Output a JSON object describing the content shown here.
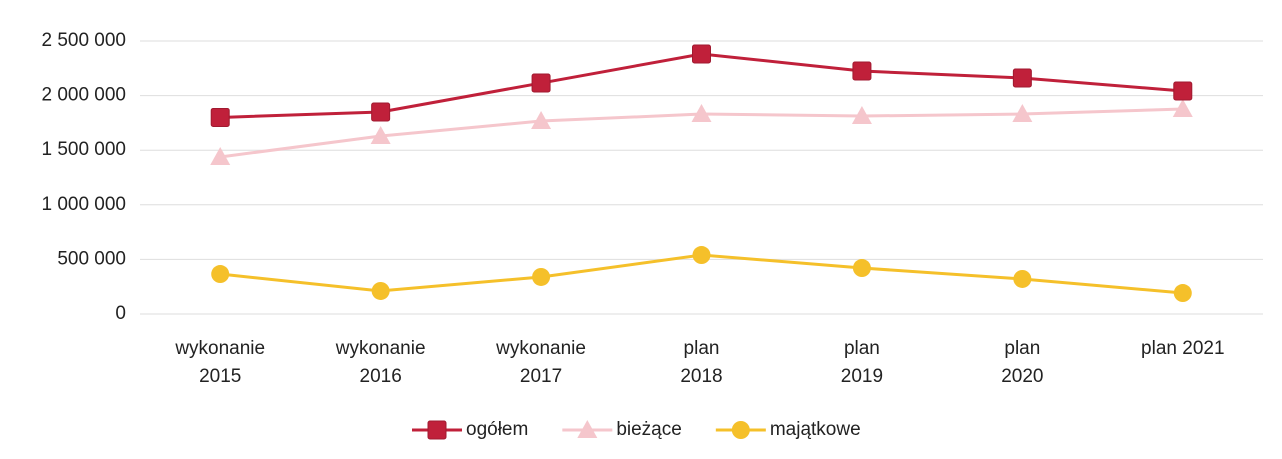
{
  "chart_data": {
    "type": "line",
    "categories": [
      [
        "wykonanie",
        "2015"
      ],
      [
        "wykonanie",
        "2016"
      ],
      [
        "wykonanie",
        "2017"
      ],
      [
        "plan",
        "2018"
      ],
      [
        "plan",
        "2019"
      ],
      [
        "plan",
        "2020"
      ],
      [
        "plan 2021"
      ]
    ],
    "series": [
      {
        "name": "ogółem",
        "color": "#c0203a",
        "marker": "square",
        "values": [
          1800000,
          1850000,
          2115000,
          2381000,
          2225000,
          2161000,
          2042000
        ]
      },
      {
        "name": "bieżące",
        "color": "#f5c6cc",
        "marker": "triangle",
        "values": [
          1438000,
          1630000,
          1767000,
          1831000,
          1813000,
          1831000,
          1877000
        ]
      },
      {
        "name": "majątkowe",
        "color": "#f5c02a",
        "marker": "circle",
        "values": [
          366000,
          211000,
          339000,
          540000,
          421000,
          321000,
          192000
        ]
      }
    ],
    "ylim": [
      0,
      2500000
    ],
    "yticks": [
      0,
      {
        "value": 500000,
        "label": "500 000"
      },
      {
        "value": 1000000,
        "label": "1 000 000"
      },
      {
        "value": 1500000,
        "label": "1 500 000"
      },
      {
        "value": 2000000,
        "label": "2 000 000"
      },
      {
        "value": 2500000,
        "label": "2 500 000"
      }
    ],
    "grid": true,
    "legend": "bottom"
  }
}
